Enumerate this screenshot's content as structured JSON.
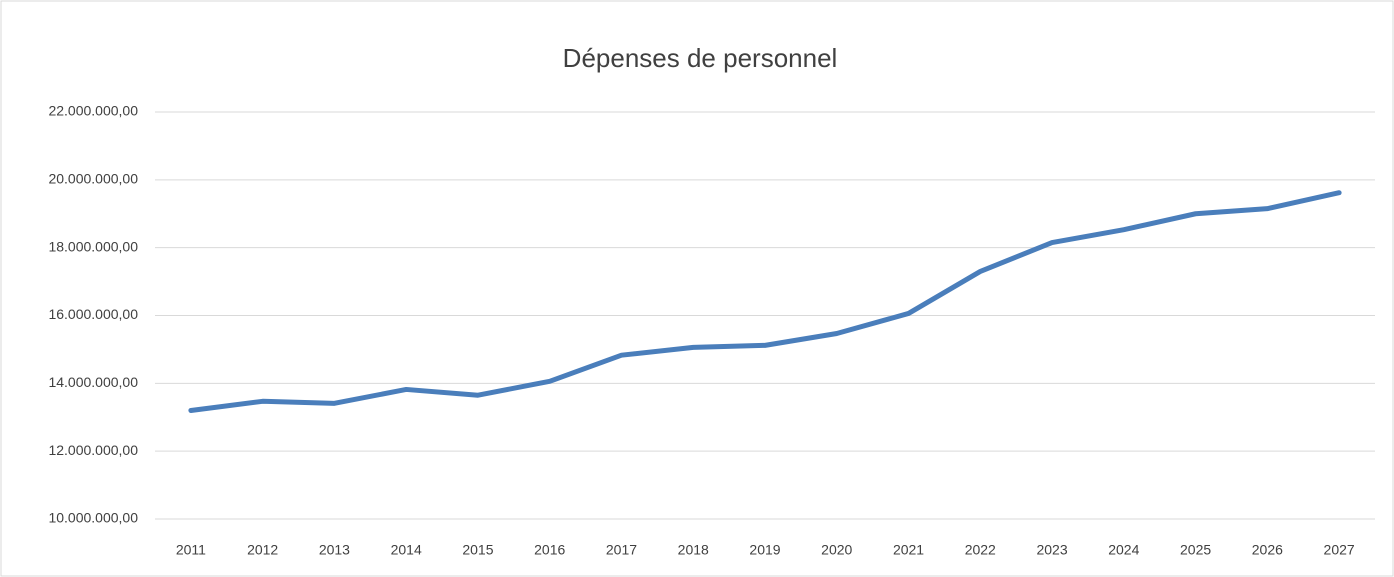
{
  "chart_data": {
    "type": "line",
    "title": "Dépenses de personnel",
    "categories": [
      "2011",
      "2012",
      "2013",
      "2014",
      "2015",
      "2016",
      "2017",
      "2018",
      "2019",
      "2020",
      "2021",
      "2022",
      "2023",
      "2024",
      "2025",
      "2026",
      "2027"
    ],
    "series": [
      {
        "name": "Dépenses de personnel",
        "color": "#4a7ebb",
        "values": [
          13200000,
          13470000,
          13410000,
          13820000,
          13650000,
          14060000,
          14830000,
          15060000,
          15120000,
          15470000,
          16060000,
          17300000,
          18150000,
          18530000,
          19000000,
          19150000,
          19620000
        ]
      }
    ],
    "ylim": [
      10000000,
      22000000
    ],
    "yticks": [
      {
        "value": 10000000,
        "label": "10.000.000,00"
      },
      {
        "value": 12000000,
        "label": "12.000.000,00"
      },
      {
        "value": 14000000,
        "label": "14.000.000,00"
      },
      {
        "value": 16000000,
        "label": "16.000.000,00"
      },
      {
        "value": 18000000,
        "label": "18.000.000,00"
      },
      {
        "value": 20000000,
        "label": "20.000.000,00"
      },
      {
        "value": 22000000,
        "label": "22.000.000,00"
      }
    ],
    "grid": true
  }
}
